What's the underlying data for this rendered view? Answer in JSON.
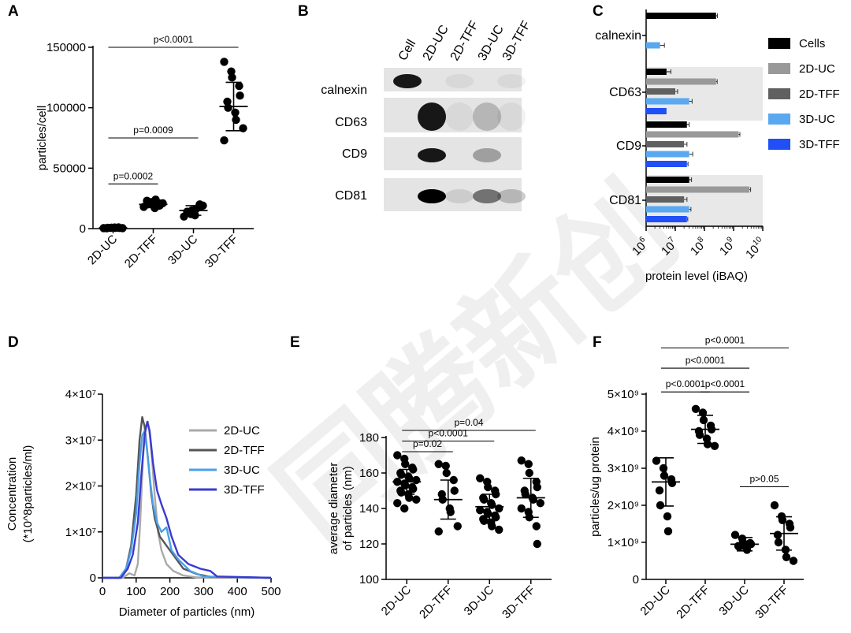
{
  "watermark": "同腾新创",
  "chart_data": [
    {
      "panel": "A",
      "type": "scatter",
      "categories": [
        "2D-UC",
        "2D-TFF",
        "3D-UC",
        "3D-TFF"
      ],
      "ylabel": "particles/cell",
      "ylim": [
        0,
        150000
      ],
      "yticks": [
        "0",
        "50000",
        "100000",
        "150000"
      ],
      "groups": [
        {
          "name": "2D-UC",
          "points": [
            400,
            600,
            800,
            1000,
            500,
            300,
            700,
            900,
            600,
            400
          ],
          "mean": 600,
          "sd": 300
        },
        {
          "name": "2D-TFF",
          "points": [
            18000,
            20000,
            22000,
            21000,
            19000,
            23000,
            20000,
            17000,
            24000,
            21000
          ],
          "mean": 20000,
          "sd": 2500
        },
        {
          "name": "3D-UC",
          "points": [
            10000,
            12000,
            15000,
            18000,
            20000,
            14000,
            13000,
            11000,
            16000,
            19000
          ],
          "mean": 15000,
          "sd": 4000
        },
        {
          "name": "3D-TFF",
          "points": [
            138000,
            130000,
            125000,
            118000,
            110000,
            105000,
            100000,
            96000,
            90000,
            83000,
            73000
          ],
          "mean": 101000,
          "sd": 20000
        }
      ],
      "comparisons": [
        {
          "a": 0,
          "b": 1,
          "label": "p=0.0002",
          "y": 37000
        },
        {
          "a": 0,
          "b": 2,
          "label": "p=0.0009",
          "y": 75000
        },
        {
          "a": 0,
          "b": 3,
          "label": "p<0.0001",
          "y": 150000
        }
      ]
    },
    {
      "panel": "B",
      "type": "western-blot",
      "lanes": [
        "Cell",
        "2D-UC",
        "2D-TFF",
        "3D-UC",
        "3D-TFF"
      ],
      "rows": [
        {
          "label": "calnexin",
          "bands": [
            0.9,
            0,
            0.05,
            0,
            0.05
          ]
        },
        {
          "label": "CD63",
          "bands": [
            0,
            0.9,
            0.05,
            0.2,
            0.05
          ]
        },
        {
          "label": "CD9",
          "bands": [
            0,
            0.9,
            0,
            0.3,
            0
          ]
        },
        {
          "label": "CD81",
          "bands": [
            0,
            1.0,
            0.1,
            0.5,
            0.2
          ]
        }
      ]
    },
    {
      "panel": "C",
      "type": "bar",
      "orientation": "horizontal",
      "scale": "log",
      "xlabel": "protein level (iBAQ)",
      "xlim_log10": [
        6,
        10
      ],
      "xticks": [
        "6",
        "7",
        "8",
        "9",
        "10"
      ],
      "categories": [
        "calnexin",
        "CD63",
        "CD9",
        "CD81"
      ],
      "series": [
        {
          "name": "Cells",
          "color": "#000000",
          "values": [
            250000000,
            5000000,
            25000000,
            30000000
          ],
          "errors": [
            0.05,
            0.15,
            0.08,
            0.08
          ]
        },
        {
          "name": "2D-UC",
          "color": "#999999",
          "values": [
            1000000,
            250000000,
            1500000000,
            3500000000
          ],
          "errors": [
            0,
            0.04,
            0.04,
            0.04
          ]
        },
        {
          "name": "2D-TFF",
          "color": "#606060",
          "values": [
            1000000,
            10000000,
            20000000,
            20000000
          ],
          "errors": [
            0,
            0.08,
            0.1,
            0.1
          ]
        },
        {
          "name": "3D-UC",
          "color": "#5aa8f0",
          "values": [
            3000000,
            30000000,
            30000000,
            30000000
          ],
          "errors": [
            0.15,
            0.1,
            0.12,
            0.06
          ]
        },
        {
          "name": "3D-TFF",
          "color": "#1f4ff5",
          "values": [
            1000000,
            5000000,
            25000000,
            25000000
          ],
          "errors": [
            0,
            0,
            0.04,
            0.03
          ]
        }
      ],
      "legend": "right"
    },
    {
      "panel": "D",
      "type": "line",
      "xlabel": "Diameter of particles (nm)",
      "ylabel_line1": "Concentration",
      "ylabel_line2": "(*10^8particles/ml)",
      "xlim": [
        0,
        500
      ],
      "ylim": [
        0,
        40000000
      ],
      "xticks": [
        "0",
        "100",
        "200",
        "300",
        "400",
        "500"
      ],
      "yticks": [
        "0",
        "1×10⁷",
        "2×10⁷",
        "3×10⁷",
        "4×10⁷"
      ],
      "legend": "right",
      "series": [
        {
          "name": "2D-UC",
          "color": "#a9a9a9",
          "x": [
            0,
            60,
            80,
            95,
            105,
            112,
            120,
            128,
            135,
            142,
            148,
            155,
            165,
            175,
            190,
            210,
            240,
            280,
            500
          ],
          "y": [
            0,
            0,
            1000000,
            500000,
            3000000,
            12000000,
            26000000,
            33000000,
            34000000,
            30000000,
            25000000,
            18000000,
            10000000,
            6000000,
            3000000,
            1500000,
            500000,
            100000,
            0
          ]
        },
        {
          "name": "2D-TFF",
          "color": "#555555",
          "x": [
            0,
            50,
            70,
            85,
            100,
            110,
            118,
            125,
            135,
            145,
            155,
            170,
            190,
            210,
            240,
            280,
            320,
            500
          ],
          "y": [
            0,
            0,
            2000000,
            7000000,
            18000000,
            30000000,
            35000000,
            33000000,
            26000000,
            18000000,
            13000000,
            9000000,
            7000000,
            5000000,
            2000000,
            800000,
            200000,
            0
          ]
        },
        {
          "name": "3D-UC",
          "color": "#4a9fe8",
          "x": [
            0,
            50,
            70,
            85,
            100,
            110,
            118,
            125,
            132,
            140,
            150,
            162,
            175,
            190,
            205,
            225,
            260,
            300,
            500
          ],
          "y": [
            0,
            0,
            2000000,
            6000000,
            14000000,
            25000000,
            31000000,
            32000000,
            28000000,
            22000000,
            16000000,
            12000000,
            10000000,
            11000000,
            6000000,
            4000000,
            1500000,
            300000,
            0
          ]
        },
        {
          "name": "3D-TFF",
          "color": "#3a3ad0",
          "x": [
            0,
            55,
            75,
            90,
            105,
            115,
            125,
            133,
            140,
            150,
            162,
            175,
            190,
            205,
            225,
            255,
            290,
            320,
            340,
            500
          ],
          "y": [
            0,
            0,
            2000000,
            5000000,
            12000000,
            22000000,
            31000000,
            34000000,
            32000000,
            25000000,
            19000000,
            16000000,
            13000000,
            9000000,
            5000000,
            3000000,
            2000000,
            1500000,
            300000,
            0
          ]
        }
      ]
    },
    {
      "panel": "E",
      "type": "scatter",
      "categories": [
        "2D-UC",
        "2D-TFF",
        "3D-UC",
        "3D-TFF"
      ],
      "ylabel_line1": "average diameter",
      "ylabel_line2": "of particles (nm)",
      "ylim": [
        100,
        180
      ],
      "yticks": [
        "100",
        "120",
        "140",
        "160",
        "180"
      ],
      "groups": [
        {
          "name": "2D-UC",
          "points": [
            170,
            168,
            165,
            163,
            162,
            160,
            159,
            158,
            157,
            156,
            155,
            154,
            153,
            152,
            151,
            150,
            149,
            148,
            146,
            145,
            143,
            140
          ],
          "mean": 155,
          "sd": 7
        },
        {
          "name": "2D-TFF",
          "points": [
            165,
            164,
            160,
            156,
            150,
            148,
            145,
            140,
            138,
            130,
            127
          ],
          "mean": 145,
          "sd": 11
        },
        {
          "name": "3D-UC",
          "points": [
            157,
            155,
            152,
            150,
            148,
            146,
            145,
            143,
            142,
            140,
            139,
            138,
            137,
            136,
            135,
            134,
            133,
            132,
            130,
            128
          ],
          "mean": 141,
          "sd": 7
        },
        {
          "name": "3D-TFF",
          "points": [
            167,
            165,
            160,
            155,
            152,
            150,
            148,
            146,
            145,
            143,
            140,
            138,
            135,
            130,
            120
          ],
          "mean": 146,
          "sd": 11
        }
      ],
      "comparisons": [
        {
          "a": 0,
          "b": 1,
          "label": "p=0.02",
          "y": 172
        },
        {
          "a": 0,
          "b": 2,
          "label": "p<0.0001",
          "y": 178
        },
        {
          "a": 0,
          "b": 3,
          "label": "p=0.04",
          "y": 184
        }
      ]
    },
    {
      "panel": "F",
      "type": "scatter",
      "categories": [
        "2D-UC",
        "2D-TFF",
        "3D-UC",
        "3D-TFF"
      ],
      "ylabel": "particles/ug protein",
      "ylim": [
        0,
        5000000000
      ],
      "yticks": [
        "0",
        "1×10⁹",
        "2×10⁹",
        "3×10⁹",
        "4×10⁹",
        "5×10⁹"
      ],
      "groups": [
        {
          "name": "2D-UC",
          "points": [
            3200000000,
            3000000000,
            2800000000,
            2700000000,
            2600000000,
            2400000000,
            2000000000,
            1700000000,
            1300000000
          ],
          "mean": 2630000000,
          "sd": 650000000
        },
        {
          "name": "2D-TFF",
          "points": [
            4600000000,
            4500000000,
            4300000000,
            4150000000,
            4050000000,
            4000000000,
            3900000000,
            3800000000,
            3650000000,
            3600000000
          ],
          "mean": 4050000000,
          "sd": 380000000
        },
        {
          "name": "3D-UC",
          "points": [
            1200000000,
            1100000000,
            1000000000,
            980000000,
            950000000,
            900000000,
            880000000,
            850000000,
            800000000
          ],
          "mean": 950000000,
          "sd": 180000000
        },
        {
          "name": "3D-TFF",
          "points": [
            2000000000,
            1700000000,
            1600000000,
            1500000000,
            1400000000,
            1200000000,
            1000000000,
            800000000,
            600000000,
            500000000
          ],
          "mean": 1240000000,
          "sd": 450000000
        }
      ],
      "comparisons": [
        {
          "a": 0,
          "b": 1,
          "label": "p<0.0001",
          "y": 5060000000
        },
        {
          "a": 1,
          "b": 2,
          "label": "p<0.0001",
          "y": 5060000000
        },
        {
          "a": 2,
          "b": 3,
          "label": "p>0.05",
          "y": 2500000000
        },
        {
          "a": 0,
          "b": 2,
          "label": "p<0.0001",
          "y": 5700000000
        },
        {
          "a": 0,
          "b": 3,
          "label": "p<0.0001",
          "y": 6250000000
        }
      ]
    }
  ]
}
